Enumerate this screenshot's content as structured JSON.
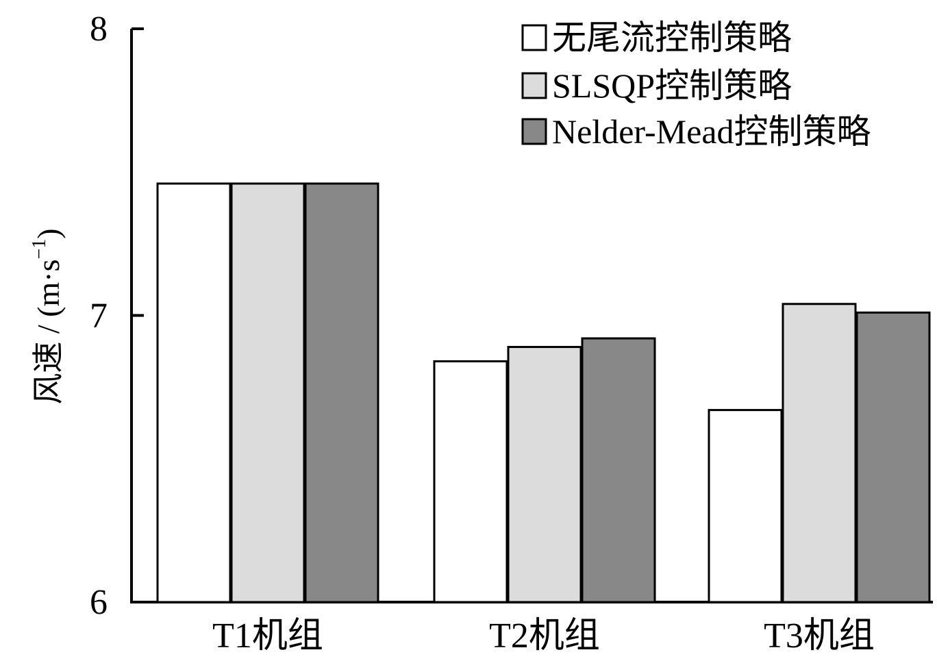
{
  "chart_data": {
    "type": "bar",
    "categories": [
      "T1机组",
      "T2机组",
      "T3机组"
    ],
    "series": [
      {
        "name": "无尾流控制策略",
        "color": "#ffffff",
        "values": [
          7.46,
          6.84,
          6.67
        ]
      },
      {
        "name": "SLSQP控制策略",
        "color": "#dcdcdc",
        "values": [
          7.46,
          6.89,
          7.04
        ]
      },
      {
        "name": "Nelder-Mead控制策略",
        "color": "#888888",
        "values": [
          7.46,
          6.92,
          7.01
        ]
      }
    ],
    "ylabel_main": "风速 / (m·s",
    "ylabel_sup": "−1",
    "ylabel_close": ")",
    "ylim": [
      6,
      8
    ],
    "yticks": [
      "6",
      "7",
      "8"
    ],
    "legend_position": "top-right",
    "grid": false
  }
}
